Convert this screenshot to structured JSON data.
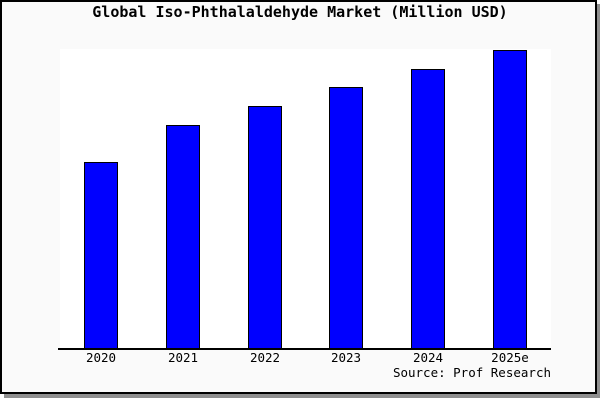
{
  "chart_data": {
    "type": "bar",
    "title": "Global Iso-Phthalaldehyde Market (Million USD)",
    "categories": [
      "2020",
      "2021",
      "2022",
      "2023",
      "2024",
      "2025e"
    ],
    "values": [
      62.3,
      74.7,
      81.0,
      87.3,
      93.3,
      99.7
    ],
    "xlabel": "",
    "ylabel": "",
    "ylim": [
      0,
      100
    ],
    "y_axis_labels_visible": false,
    "grid": false,
    "legend": "none",
    "bar_color": "#0000ff",
    "bar_border_color": "#000000"
  },
  "footer": {
    "source": "Source: Prof Research"
  },
  "colors": {
    "canvas_background": "#fafafa",
    "plot_background": "#ffffff",
    "frame_border": "#000000",
    "axis_line": "#000000",
    "shadow": "#8f8f8f",
    "text": "#000000"
  }
}
